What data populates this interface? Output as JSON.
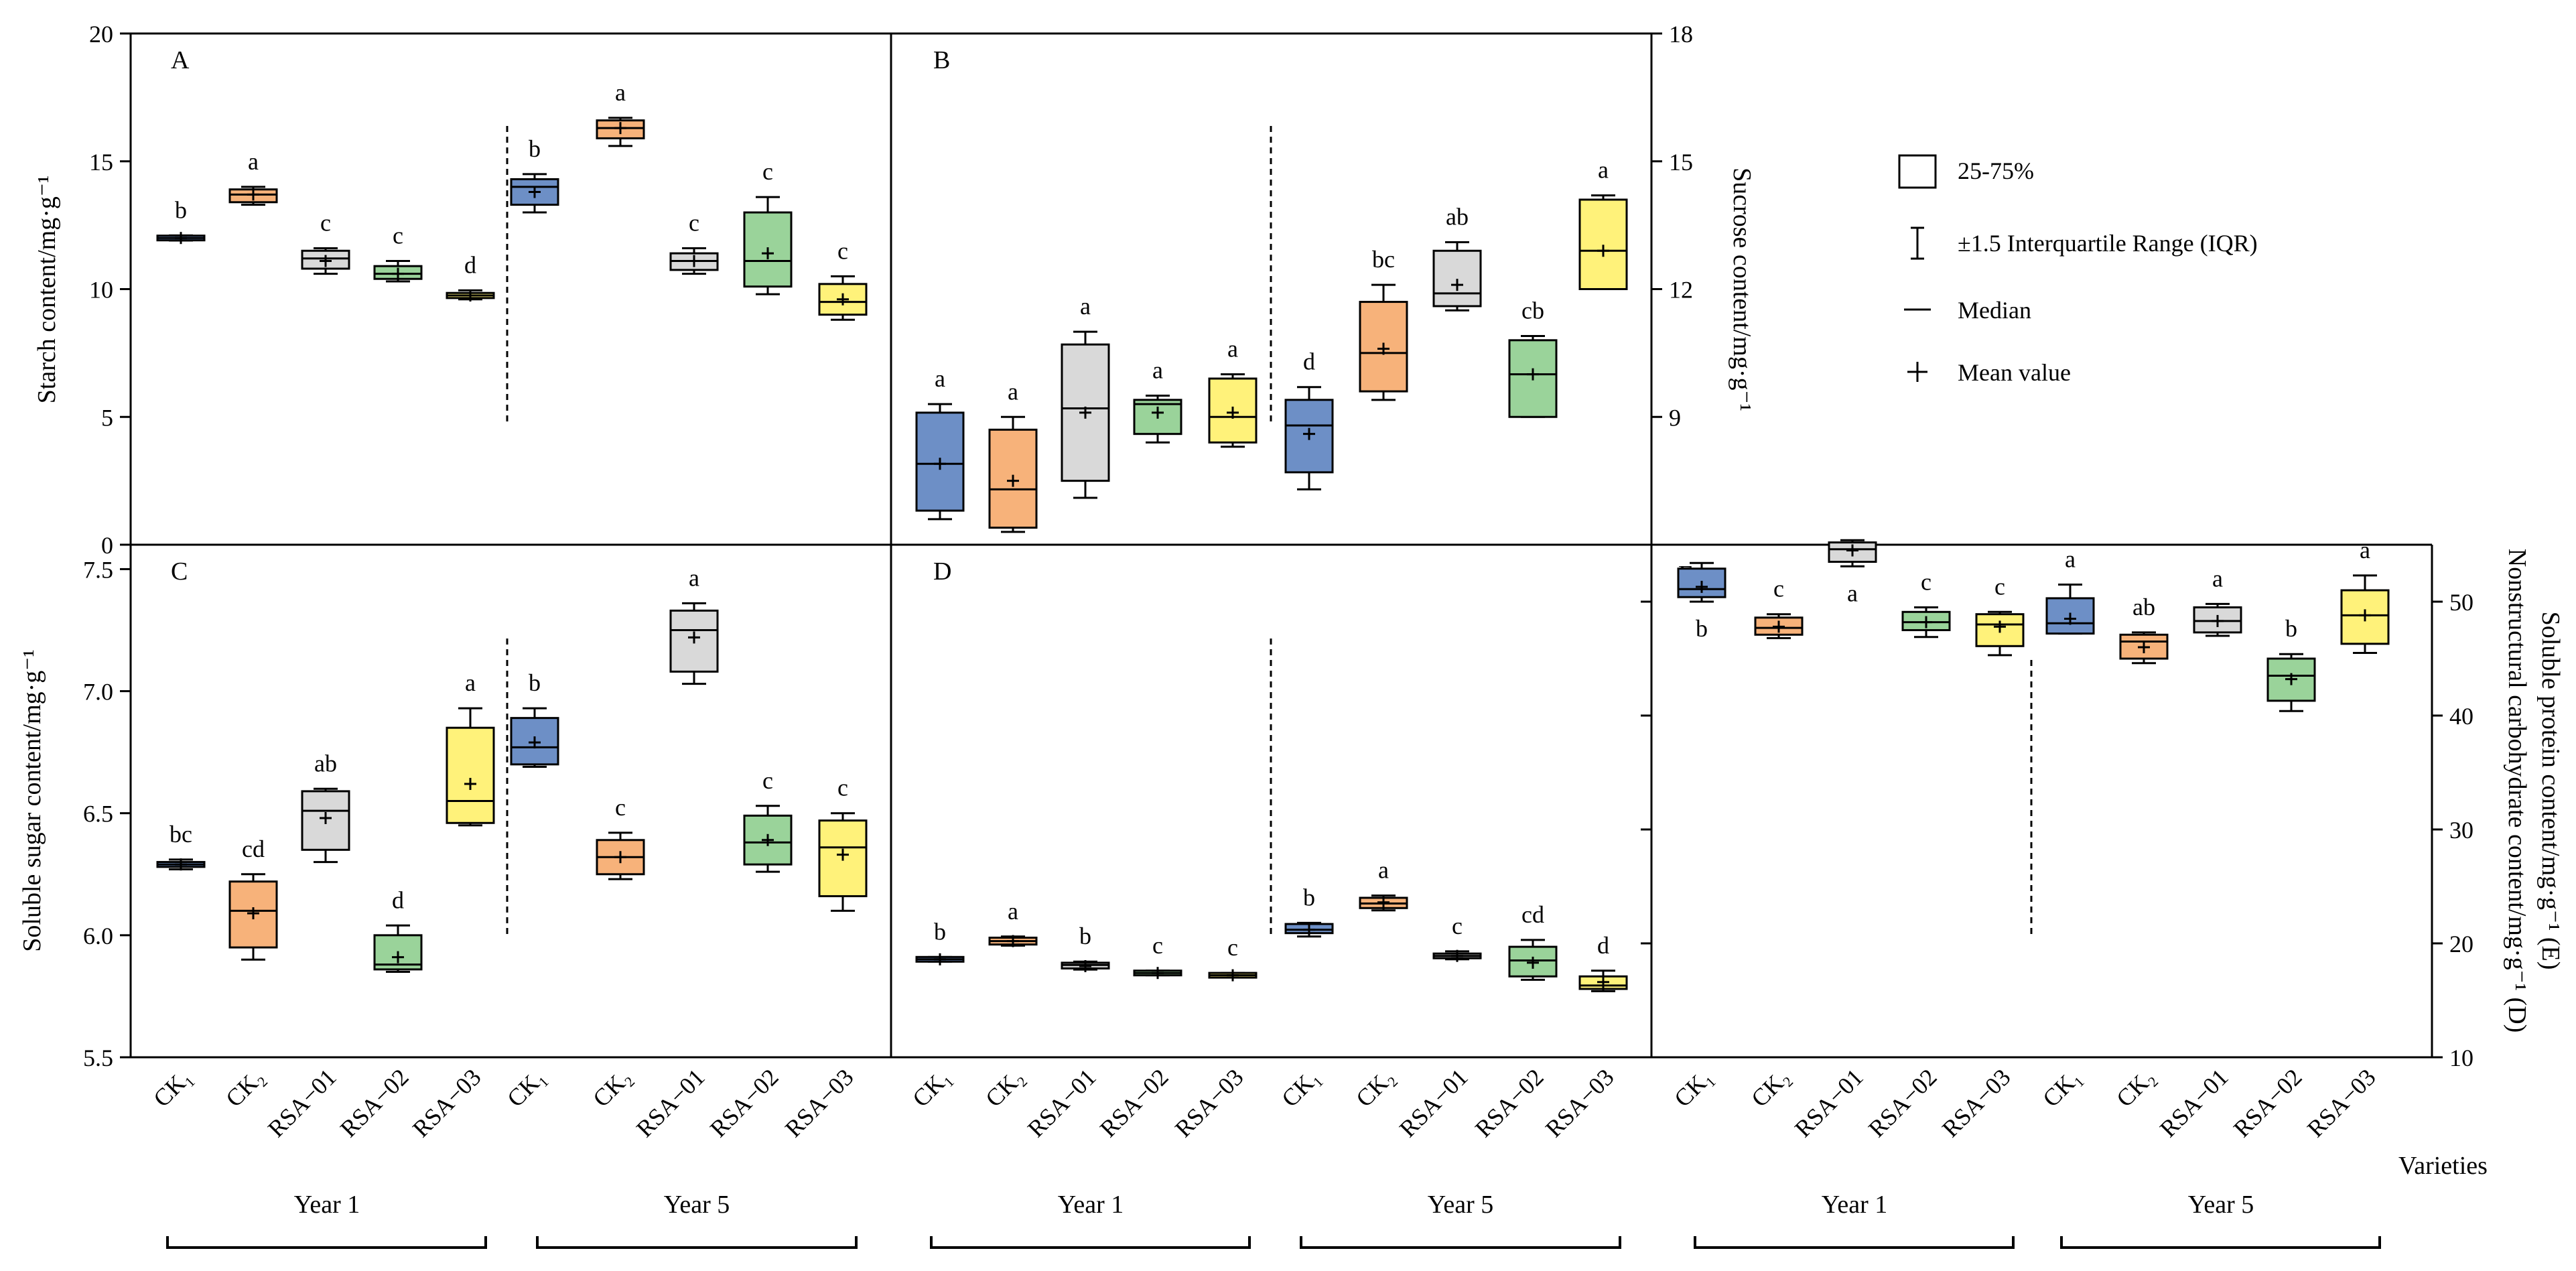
{
  "colors": {
    "CK1": "#6d8fc6",
    "CK2": "#f7b27a",
    "RSA-01": "#d9d9d9",
    "RSA-02": "#9ad39a",
    "RSA-03": "#fff27a"
  },
  "legend": {
    "box_label": "25-75%",
    "whisker_label": "±1.5 Interquartile Range (IQR)",
    "median_label": "Median",
    "mean_label": "Mean value"
  },
  "axis_labels": {
    "starch": "Starch content/mg·g⁻¹",
    "sucrose": "Sucrose content/mg·g⁻¹",
    "soluble_sugar": "Soluble sugar content/mg·g⁻¹",
    "protein_nsc_line1": "Soluble protein content/mg·g⁻¹ (E)",
    "protein_nsc_line2": "Nonstructural carbohydrate content/mg·g⁻¹ (D)",
    "varieties": "Varieties"
  },
  "category_labels": [
    "CK₁",
    "CK₂",
    "RSA−01",
    "RSA−02",
    "RSA−03",
    "CK₁",
    "CK₂",
    "RSA−01",
    "RSA−02",
    "RSA−03"
  ],
  "year_labels": [
    "Year 1",
    "Year 5"
  ],
  "chart_data": [
    {
      "type": "box",
      "panel": "A",
      "ylabel": "Starch content/mg·g⁻¹",
      "ylim": [
        0,
        20
      ],
      "yticks": [
        0,
        5,
        10,
        15,
        20
      ],
      "groups": [
        "Year 1",
        "Year 5"
      ],
      "categories": [
        "CK1",
        "CK2",
        "RSA-01",
        "RSA-02",
        "RSA-03",
        "CK1",
        "CK2",
        "RSA-01",
        "RSA-02",
        "RSA-03"
      ],
      "boxes": [
        {
          "color": "CK1",
          "min": 11.9,
          "q1": 11.95,
          "median": 12.0,
          "q3": 12.05,
          "max": 12.1,
          "mean": 12.0,
          "letter": "b"
        },
        {
          "color": "CK2",
          "min": 13.3,
          "q1": 13.4,
          "median": 13.7,
          "q3": 13.9,
          "max": 14.0,
          "mean": 13.7,
          "letter": "a"
        },
        {
          "color": "RSA-01",
          "min": 10.6,
          "q1": 10.8,
          "median": 11.2,
          "q3": 11.5,
          "max": 11.6,
          "mean": 11.1,
          "letter": "c"
        },
        {
          "color": "RSA-02",
          "min": 10.3,
          "q1": 10.4,
          "median": 10.6,
          "q3": 10.9,
          "max": 11.1,
          "mean": 10.6,
          "letter": "c"
        },
        {
          "color": "RSA-03",
          "min": 9.6,
          "q1": 9.65,
          "median": 9.75,
          "q3": 9.85,
          "max": 9.95,
          "mean": 9.75,
          "letter": "d"
        },
        {
          "color": "CK1",
          "min": 13.0,
          "q1": 13.3,
          "median": 14.0,
          "q3": 14.3,
          "max": 14.5,
          "mean": 13.8,
          "letter": "b"
        },
        {
          "color": "CK2",
          "min": 15.6,
          "q1": 15.9,
          "median": 16.3,
          "q3": 16.6,
          "max": 16.7,
          "mean": 16.3,
          "letter": "a"
        },
        {
          "color": "RSA-01",
          "min": 10.6,
          "q1": 10.75,
          "median": 11.1,
          "q3": 11.4,
          "max": 11.6,
          "mean": 11.1,
          "letter": "c"
        },
        {
          "color": "RSA-02",
          "min": 9.8,
          "q1": 10.1,
          "median": 11.1,
          "q3": 13.0,
          "max": 13.6,
          "mean": 11.4,
          "letter": "c"
        },
        {
          "color": "RSA-03",
          "min": 8.8,
          "q1": 9.0,
          "median": 9.5,
          "q3": 10.2,
          "max": 10.5,
          "mean": 9.6,
          "letter": "c"
        }
      ]
    },
    {
      "type": "box",
      "panel": "B",
      "ylabel": "Sucrose content/mg·g⁻¹",
      "ylim": [
        6,
        18
      ],
      "yticks": [
        9,
        12,
        15,
        18
      ],
      "groups": [
        "Year 1",
        "Year 5"
      ],
      "categories": [
        "CK1",
        "CK2",
        "RSA-01",
        "RSA-02",
        "RSA-03",
        "CK1",
        "CK2",
        "RSA-01",
        "RSA-02",
        "RSA-03"
      ],
      "boxes": [
        {
          "color": "CK1",
          "min": 6.6,
          "q1": 6.8,
          "median": 7.9,
          "q3": 9.1,
          "max": 9.3,
          "mean": 7.9,
          "letter": "a"
        },
        {
          "color": "CK2",
          "min": 6.3,
          "q1": 6.4,
          "median": 7.3,
          "q3": 8.7,
          "max": 9.0,
          "mean": 7.5,
          "letter": "a"
        },
        {
          "color": "RSA-01",
          "min": 7.1,
          "q1": 7.5,
          "median": 9.2,
          "q3": 10.7,
          "max": 11.0,
          "mean": 9.1,
          "letter": "a"
        },
        {
          "color": "RSA-02",
          "min": 8.4,
          "q1": 8.6,
          "median": 9.3,
          "q3": 9.4,
          "max": 9.5,
          "mean": 9.1,
          "letter": "a"
        },
        {
          "color": "RSA-03",
          "min": 8.3,
          "q1": 8.4,
          "median": 9.0,
          "q3": 9.9,
          "max": 10.0,
          "mean": 9.1,
          "letter": "a"
        },
        {
          "color": "CK1",
          "min": 7.3,
          "q1": 7.7,
          "median": 8.8,
          "q3": 9.4,
          "max": 9.7,
          "mean": 8.6,
          "letter": "d"
        },
        {
          "color": "CK2",
          "min": 9.4,
          "q1": 9.6,
          "median": 10.5,
          "q3": 11.7,
          "max": 12.1,
          "mean": 10.6,
          "letter": "bc"
        },
        {
          "color": "RSA-01",
          "min": 11.5,
          "q1": 11.6,
          "median": 11.9,
          "q3": 12.9,
          "max": 13.1,
          "mean": 12.1,
          "letter": "ab"
        },
        {
          "color": "RSA-02",
          "min": 9.0,
          "q1": 9.0,
          "median": 10.0,
          "q3": 10.8,
          "max": 10.9,
          "mean": 10.0,
          "letter": "cb"
        },
        {
          "color": "RSA-03",
          "min": 12.0,
          "q1": 12.0,
          "median": 12.9,
          "q3": 14.1,
          "max": 14.2,
          "mean": 12.9,
          "letter": "a"
        }
      ]
    },
    {
      "type": "box",
      "panel": "C",
      "ylabel": "Soluble sugar content/mg·g⁻¹",
      "ylim": [
        5.5,
        7.6
      ],
      "yticks": [
        5.5,
        6.0,
        6.5,
        7.0,
        7.5
      ],
      "groups": [
        "Year 1",
        "Year 5"
      ],
      "categories": [
        "CK1",
        "CK2",
        "RSA-01",
        "RSA-02",
        "RSA-03",
        "CK1",
        "CK2",
        "RSA-01",
        "RSA-02",
        "RSA-03"
      ],
      "boxes": [
        {
          "color": "CK1",
          "min": 6.27,
          "q1": 6.28,
          "median": 6.29,
          "q3": 6.3,
          "max": 6.31,
          "mean": 6.29,
          "letter": "bc"
        },
        {
          "color": "CK2",
          "min": 5.9,
          "q1": 5.95,
          "median": 6.1,
          "q3": 6.22,
          "max": 6.25,
          "mean": 6.09,
          "letter": "cd"
        },
        {
          "color": "RSA-01",
          "min": 6.3,
          "q1": 6.35,
          "median": 6.51,
          "q3": 6.59,
          "max": 6.6,
          "mean": 6.48,
          "letter": "ab"
        },
        {
          "color": "RSA-02",
          "min": 5.85,
          "q1": 5.86,
          "median": 5.88,
          "q3": 6.0,
          "max": 6.04,
          "mean": 5.91,
          "letter": "d"
        },
        {
          "color": "RSA-03",
          "min": 6.45,
          "q1": 6.46,
          "median": 6.55,
          "q3": 6.85,
          "max": 6.93,
          "mean": 6.62,
          "letter": "a"
        },
        {
          "color": "CK1",
          "min": 6.69,
          "q1": 6.7,
          "median": 6.77,
          "q3": 6.89,
          "max": 6.93,
          "mean": 6.79,
          "letter": "b"
        },
        {
          "color": "CK2",
          "min": 6.23,
          "q1": 6.25,
          "median": 6.32,
          "q3": 6.39,
          "max": 6.42,
          "mean": 6.32,
          "letter": "c"
        },
        {
          "color": "RSA-01",
          "min": 7.03,
          "q1": 7.08,
          "median": 7.25,
          "q3": 7.33,
          "max": 7.36,
          "mean": 7.22,
          "letter": "a"
        },
        {
          "color": "RSA-02",
          "min": 6.26,
          "q1": 6.29,
          "median": 6.38,
          "q3": 6.49,
          "max": 6.53,
          "mean": 6.39,
          "letter": "c"
        },
        {
          "color": "RSA-03",
          "min": 6.1,
          "q1": 6.16,
          "median": 6.36,
          "q3": 6.47,
          "max": 6.5,
          "mean": 6.33,
          "letter": "c"
        }
      ]
    },
    {
      "type": "box",
      "panel": "D",
      "ylabel": "Nonstructural carbohydrate content/mg·g⁻¹ (D)",
      "ylim": [
        10,
        55
      ],
      "groups": [
        "Year 1",
        "Year 5"
      ],
      "categories": [
        "CK1",
        "CK2",
        "RSA-01",
        "RSA-02",
        "RSA-03",
        "CK1",
        "CK2",
        "RSA-01",
        "RSA-02",
        "RSA-03"
      ],
      "boxes": [
        {
          "color": "CK1",
          "min": 18.4,
          "q1": 18.5,
          "median": 18.6,
          "q3": 18.7,
          "max": 18.8,
          "mean": 18.6,
          "letter": "b"
        },
        {
          "color": "CK2",
          "min": 19.8,
          "q1": 19.9,
          "median": 20.2,
          "q3": 20.5,
          "max": 20.6,
          "mean": 20.2,
          "letter": "a"
        },
        {
          "color": "RSA-01",
          "min": 17.7,
          "q1": 17.8,
          "median": 18.1,
          "q3": 18.3,
          "max": 18.4,
          "mean": 18.0,
          "letter": "b"
        },
        {
          "color": "RSA-02",
          "min": 17.2,
          "q1": 17.3,
          "median": 17.4,
          "q3": 17.5,
          "max": 17.6,
          "mean": 17.4,
          "letter": "c"
        },
        {
          "color": "RSA-03",
          "min": 17.0,
          "q1": 17.1,
          "median": 17.2,
          "q3": 17.3,
          "max": 17.4,
          "mean": 17.2,
          "letter": "c"
        },
        {
          "color": "CK1",
          "min": 20.6,
          "q1": 20.9,
          "median": 21.2,
          "q3": 21.7,
          "max": 21.8,
          "mean": 21.2,
          "letter": "b"
        },
        {
          "color": "CK2",
          "min": 22.9,
          "q1": 23.1,
          "median": 23.5,
          "q3": 24.0,
          "max": 24.2,
          "mean": 23.6,
          "letter": "a"
        },
        {
          "color": "RSA-01",
          "min": 18.6,
          "q1": 18.7,
          "median": 18.9,
          "q3": 19.1,
          "max": 19.3,
          "mean": 18.9,
          "letter": "c"
        },
        {
          "color": "RSA-02",
          "min": 16.8,
          "q1": 17.1,
          "median": 18.5,
          "q3": 19.7,
          "max": 20.3,
          "mean": 18.3,
          "letter": "cd"
        },
        {
          "color": "RSA-03",
          "min": 15.8,
          "q1": 16.0,
          "median": 16.3,
          "q3": 17.1,
          "max": 17.6,
          "mean": 16.6,
          "letter": "d"
        }
      ]
    },
    {
      "type": "box",
      "panel": "E",
      "ylabel": "Soluble protein content/mg·g⁻¹ (E)",
      "ylim": [
        10,
        55
      ],
      "yticks": [
        10,
        20,
        30,
        40,
        50
      ],
      "groups": [
        "Year 1",
        "Year 5"
      ],
      "categories": [
        "CK1",
        "CK2",
        "RSA-01",
        "RSA-02",
        "RSA-03",
        "CK1",
        "CK2",
        "RSA-01",
        "RSA-02",
        "RSA-03"
      ],
      "boxes": [
        {
          "color": "CK1",
          "min": 50.0,
          "q1": 50.4,
          "median": 51.1,
          "q3": 52.9,
          "max": 53.4,
          "mean": 51.3,
          "letter": "b",
          "letter_pos": "below"
        },
        {
          "color": "CK2",
          "min": 46.8,
          "q1": 47.1,
          "median": 47.7,
          "q3": 48.6,
          "max": 48.9,
          "mean": 47.8,
          "letter": "c"
        },
        {
          "color": "RSA-01",
          "min": 53.1,
          "q1": 53.5,
          "median": 54.6,
          "q3": 55.2,
          "max": 55.4,
          "mean": 54.5,
          "letter": "a",
          "letter_pos": "below"
        },
        {
          "color": "RSA-02",
          "min": 46.9,
          "q1": 47.5,
          "median": 48.2,
          "q3": 49.1,
          "max": 49.5,
          "mean": 48.2,
          "letter": "c"
        },
        {
          "color": "RSA-03",
          "min": 45.3,
          "q1": 46.1,
          "median": 48.0,
          "q3": 48.9,
          "max": 49.1,
          "mean": 47.8,
          "letter": "c"
        },
        {
          "color": "CK1",
          "min": 47.2,
          "q1": 47.2,
          "median": 48.1,
          "q3": 50.3,
          "max": 51.5,
          "mean": 48.5,
          "letter": "a"
        },
        {
          "color": "CK2",
          "min": 44.6,
          "q1": 45.0,
          "median": 46.5,
          "q3": 47.1,
          "max": 47.3,
          "mean": 46.0,
          "letter": "ab"
        },
        {
          "color": "RSA-01",
          "min": 47.0,
          "q1": 47.3,
          "median": 48.3,
          "q3": 49.5,
          "max": 49.8,
          "mean": 48.3,
          "letter": "a"
        },
        {
          "color": "RSA-02",
          "min": 40.4,
          "q1": 41.3,
          "median": 43.5,
          "q3": 45.0,
          "max": 45.4,
          "mean": 43.2,
          "letter": "b"
        },
        {
          "color": "RSA-03",
          "min": 45.5,
          "q1": 46.3,
          "median": 48.8,
          "q3": 51.0,
          "max": 52.3,
          "mean": 48.8,
          "letter": "a"
        }
      ]
    }
  ]
}
